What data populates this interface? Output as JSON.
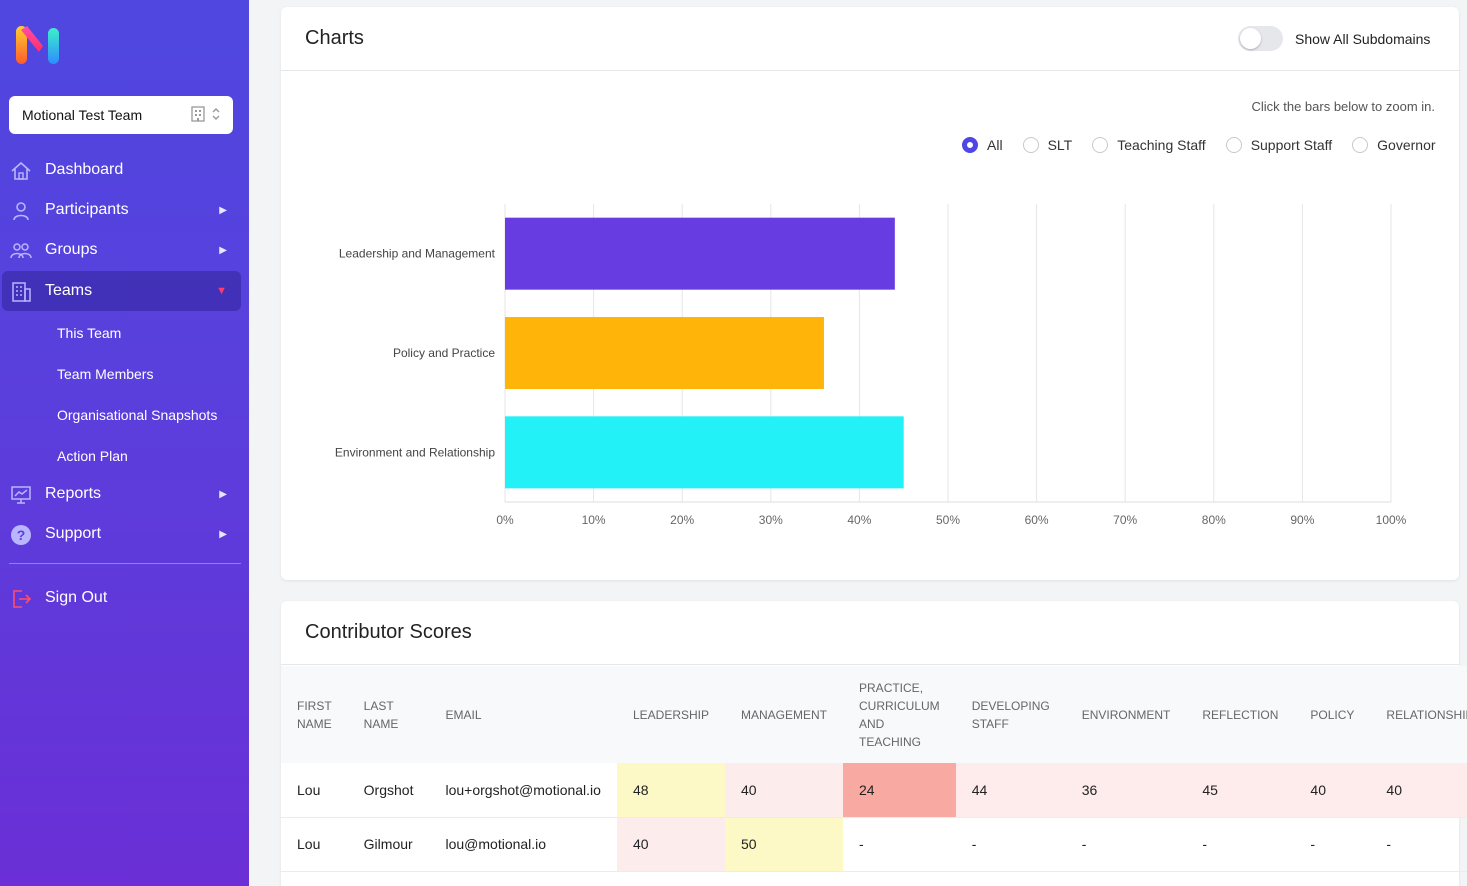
{
  "sidebar": {
    "team_select": "Motional Test Team",
    "nav": [
      {
        "label": "Dashboard"
      },
      {
        "label": "Participants"
      },
      {
        "label": "Groups"
      },
      {
        "label": "Teams"
      },
      {
        "label": "Reports"
      },
      {
        "label": "Support"
      }
    ],
    "sub_items": [
      "This Team",
      "Team Members",
      "Organisational Snapshots",
      "Action Plan"
    ],
    "sign_out": "Sign Out"
  },
  "charts": {
    "title": "Charts",
    "toggle_label": "Show All Subdomains",
    "hint": "Click the bars below to zoom in.",
    "radios": [
      "All",
      "SLT",
      "Teaching Staff",
      "Support Staff",
      "Governor"
    ],
    "selected_radio": "All"
  },
  "chart_data": {
    "type": "bar",
    "orientation": "horizontal",
    "categories": [
      "Leadership and Management",
      "Policy and Practice",
      "Environment and Relationship"
    ],
    "values": [
      44,
      36,
      45
    ],
    "colors": [
      "#673ce0",
      "#ffb40a",
      "#22f1f7"
    ],
    "xlim": [
      0,
      100
    ],
    "x_ticks": [
      "0%",
      "10%",
      "20%",
      "30%",
      "40%",
      "50%",
      "60%",
      "70%",
      "80%",
      "90%",
      "100%"
    ],
    "grid": true
  },
  "scores": {
    "title": "Contributor Scores",
    "columns": [
      "FIRST NAME",
      "LAST NAME",
      "EMAIL",
      "LEADERSHIP",
      "MANAGEMENT",
      "PRACTICE, CURRICULUM AND TEACHING",
      "DEVELOPING STAFF",
      "ENVIRONMENT",
      "REFLECTION",
      "POLICY",
      "RELATIONSHIP"
    ],
    "rows": [
      [
        "Lou",
        "Orgshot",
        "lou+orgshot@motional.io",
        "48",
        "40",
        "24",
        "44",
        "36",
        "45",
        "40",
        "40"
      ],
      [
        "Lou",
        "Gilmour",
        "lou@motional.io",
        "40",
        "50",
        "-",
        "-",
        "-",
        "-",
        "-",
        "-"
      ]
    ]
  }
}
